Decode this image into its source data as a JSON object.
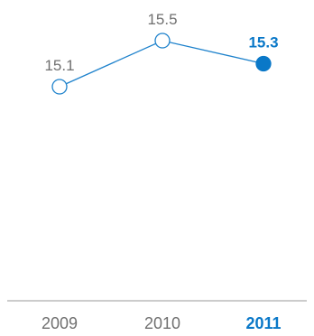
{
  "chart_data": {
    "type": "line",
    "categories": [
      "2009",
      "2010",
      "2011"
    ],
    "values": [
      15.1,
      15.5,
      15.3
    ],
    "value_labels": [
      "15.1",
      "15.5",
      "15.3"
    ],
    "highlight_index": 2,
    "y_range": [
      14.7,
      15.5
    ],
    "grid": false,
    "title": "",
    "xlabel": "",
    "ylabel": ""
  },
  "colors": {
    "line": "#1e82cc",
    "highlight": "#0a78c8",
    "text": "#707070",
    "baseline": "#9a9a9a",
    "marker_fill": "#ffffff"
  }
}
